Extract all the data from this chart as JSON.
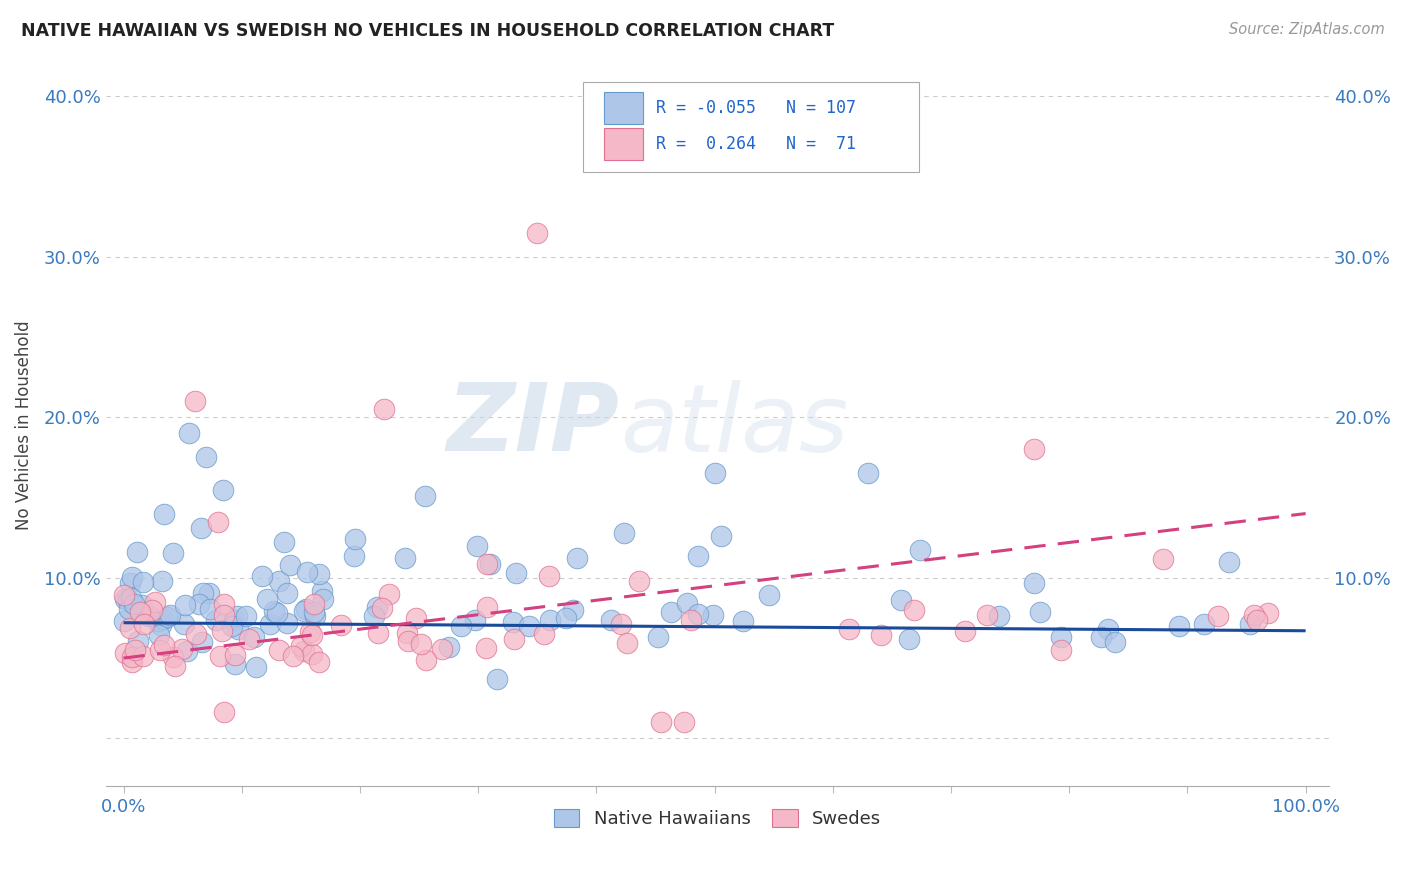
{
  "title": "NATIVE HAWAIIAN VS SWEDISH NO VEHICLES IN HOUSEHOLD CORRELATION CHART",
  "source": "Source: ZipAtlas.com",
  "ylabel": "No Vehicles in Household",
  "legend_labels": [
    "Native Hawaiians",
    "Swedes"
  ],
  "legend_r": [
    -0.055,
    0.264
  ],
  "legend_n": [
    107,
    71
  ],
  "blue_color": "#aec6e8",
  "pink_color": "#f4b8c8",
  "blue_edge_color": "#6699cc",
  "pink_edge_color": "#e07090",
  "blue_line_color": "#1a4a9a",
  "pink_line_color": "#d44080",
  "watermark_color": "#e0e8f0",
  "ytick_values": [
    0.0,
    0.1,
    0.2,
    0.3,
    0.4
  ],
  "ytick_labels": [
    "",
    "10.0%",
    "20.0%",
    "30.0%",
    "40.0%"
  ],
  "xlim": [
    -0.015,
    1.02
  ],
  "ylim": [
    -0.03,
    0.42
  ],
  "blue_r": -0.055,
  "blue_n": 107,
  "pink_r": 0.264,
  "pink_n": 71,
  "blue_line_x0": 0.0,
  "blue_line_y0": 0.072,
  "blue_line_x1": 1.0,
  "blue_line_y1": 0.067,
  "pink_line_x0": 0.0,
  "pink_line_y0": 0.05,
  "pink_line_x1": 1.0,
  "pink_line_y1": 0.14
}
